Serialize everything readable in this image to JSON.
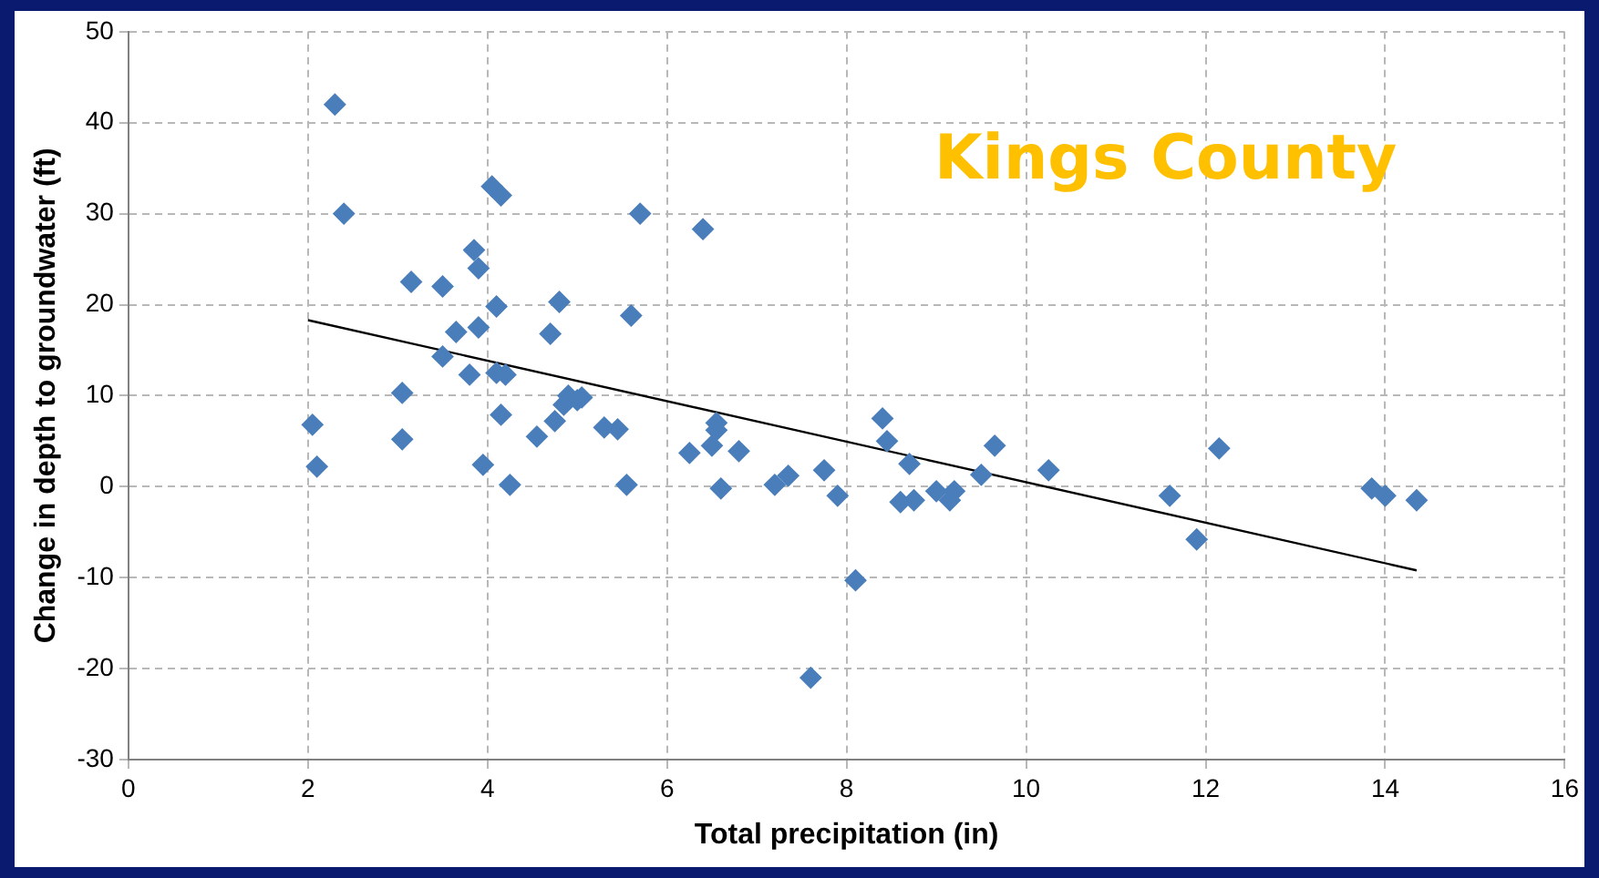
{
  "chart_data": {
    "type": "scatter",
    "title": "Kings County",
    "xlabel": "Total precipitation (in)",
    "ylabel": "Change in depth to groundwater (ft)",
    "series": [
      {
        "color": "#4a7ebb",
        "marker": "diamond",
        "x": [
          2.05,
          2.1,
          2.3,
          2.4,
          3.05,
          3.05,
          3.15,
          3.5,
          3.5,
          3.65,
          3.8,
          3.85,
          3.9,
          3.9,
          3.95,
          4.05,
          4.1,
          4.1,
          4.15,
          4.15,
          4.2,
          4.25,
          4.55,
          4.7,
          4.75,
          4.8,
          4.85,
          4.9,
          5.0,
          5.05,
          5.3,
          5.45,
          5.55,
          5.6,
          5.7,
          6.25,
          6.4,
          6.5,
          6.55,
          6.55,
          6.6,
          6.8,
          7.2,
          7.35,
          7.6,
          7.75,
          7.9,
          8.1,
          8.4,
          8.45,
          8.6,
          8.7,
          8.75,
          9.0,
          9.15,
          9.2,
          9.5,
          9.65,
          10.25,
          11.6,
          11.9,
          12.15,
          13.85,
          14.0,
          14.35
        ],
        "values": [
          6.8,
          2.2,
          42,
          30,
          10.3,
          5.2,
          22.5,
          22,
          14.3,
          17,
          12.3,
          26,
          24,
          17.5,
          2.4,
          33,
          12.5,
          19.8,
          32,
          7.9,
          12.3,
          0.2,
          5.5,
          16.8,
          7.2,
          20.3,
          9,
          10,
          9.5,
          9.8,
          6.5,
          6.3,
          0.2,
          18.8,
          30,
          3.7,
          28.3,
          4.5,
          6.2,
          7,
          -0.2,
          3.9,
          0.2,
          1.2,
          -21,
          1.8,
          -1,
          -10.3,
          7.5,
          5,
          -1.7,
          2.5,
          -1.5,
          -0.5,
          -1.5,
          -0.5,
          1.3,
          4.5,
          1.8,
          -1,
          -5.8,
          4.2,
          -0.2,
          -1,
          -1.5
        ]
      },
      {
        "type": "line",
        "color": "#000000",
        "marker": "none",
        "x": [
          2,
          14.35
        ],
        "values": [
          18.3,
          -9.2
        ]
      }
    ],
    "xlim": [
      0,
      16
    ],
    "xticks": [
      0,
      2,
      4,
      6,
      8,
      10,
      12,
      14,
      16
    ],
    "ylim": [
      -30,
      50
    ],
    "yticks": [
      -30,
      -20,
      -10,
      0,
      10,
      20,
      30,
      40,
      50
    ],
    "grid": true,
    "legend": false
  }
}
